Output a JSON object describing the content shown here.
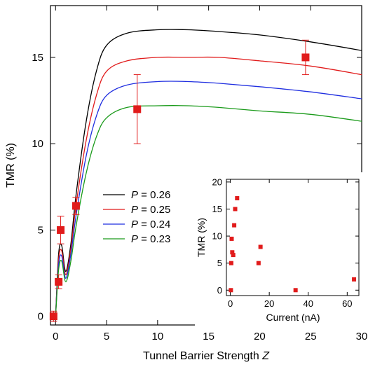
{
  "chart_data": [
    {
      "type": "line",
      "xlabel": "Tunnel Barrier Strength",
      "xlabel_italic": "Z",
      "ylabel": "TMR (%)",
      "xlim": [
        -0.5,
        30
      ],
      "ylim": [
        -0.5,
        18
      ],
      "xticks": [
        0,
        5,
        10,
        15,
        20,
        25,
        30
      ],
      "yticks": [
        0,
        5,
        10,
        15
      ],
      "grid": false,
      "legend_position": "center-left",
      "series": [
        {
          "name": "P = 0.26",
          "legend_var": "P",
          "legend_value": "= 0.26",
          "color": "#000000",
          "x": [
            0,
            0.3,
            0.6,
            1.0,
            1.5,
            2,
            3,
            4,
            5,
            7,
            10,
            13,
            16,
            20,
            25,
            30
          ],
          "values": [
            0,
            3.6,
            4.1,
            2.6,
            4.2,
            7.0,
            11.3,
            14.2,
            15.7,
            16.4,
            16.6,
            16.6,
            16.5,
            16.3,
            15.9,
            15.4
          ]
        },
        {
          "name": "P = 0.25",
          "legend_var": "P",
          "legend_value": "= 0.25",
          "color": "#e11b1b",
          "x": [
            0,
            0.3,
            0.6,
            1.0,
            1.5,
            2,
            3,
            4,
            5,
            7,
            10,
            13,
            16,
            20,
            25,
            30
          ],
          "values": [
            0,
            3.3,
            3.8,
            2.4,
            3.9,
            6.4,
            10.2,
            12.8,
            14.2,
            14.8,
            15.0,
            15.0,
            15.0,
            14.8,
            14.5,
            14.0
          ]
        },
        {
          "name": "P = 0.24",
          "legend_var": "P",
          "legend_value": "= 0.24",
          "color": "#1f2ee0",
          "x": [
            0,
            0.3,
            0.6,
            1.0,
            1.5,
            2,
            3,
            4,
            5,
            7,
            10,
            13,
            16,
            20,
            25,
            30
          ],
          "values": [
            0,
            3.0,
            3.5,
            2.2,
            3.6,
            5.8,
            9.3,
            11.6,
            12.8,
            13.4,
            13.6,
            13.6,
            13.5,
            13.3,
            13.0,
            12.6
          ]
        },
        {
          "name": "P = 0.23",
          "legend_var": "P",
          "legend_value": "= 0.23",
          "color": "#1a9a1a",
          "x": [
            0,
            0.3,
            0.6,
            1.0,
            1.5,
            2,
            3,
            4,
            5,
            7,
            10,
            13,
            16,
            20,
            25,
            30
          ],
          "values": [
            0,
            2.7,
            3.2,
            2.0,
            3.2,
            5.2,
            8.3,
            10.4,
            11.5,
            12.1,
            12.2,
            12.2,
            12.1,
            11.9,
            11.7,
            11.3
          ]
        }
      ],
      "points": {
        "color": "#e11b1b",
        "x": [
          -0.2,
          0.3,
          0.5,
          2,
          8,
          24.5
        ],
        "y": [
          0,
          2,
          5,
          6.4,
          12,
          15
        ],
        "yerr": [
          0.3,
          0.4,
          0.8,
          0.5,
          2,
          1
        ]
      }
    },
    {
      "type": "scatter",
      "role": "inset",
      "xlabel": "Current (nA)",
      "ylabel": "TMR (%)",
      "xlim": [
        -2,
        66
      ],
      "ylim": [
        -1,
        20.5
      ],
      "xticks": [
        0,
        20,
        40,
        60
      ],
      "yticks": [
        0,
        5,
        10,
        15,
        20
      ],
      "color": "#e11b1b",
      "x": [
        0.3,
        0.5,
        0.7,
        1.0,
        1.5,
        2.0,
        2.5,
        3.5,
        14.5,
        15.5,
        33.5,
        63.5
      ],
      "y": [
        0,
        5,
        9.5,
        7,
        6.5,
        12,
        15,
        17,
        5,
        8,
        0,
        2
      ]
    }
  ]
}
